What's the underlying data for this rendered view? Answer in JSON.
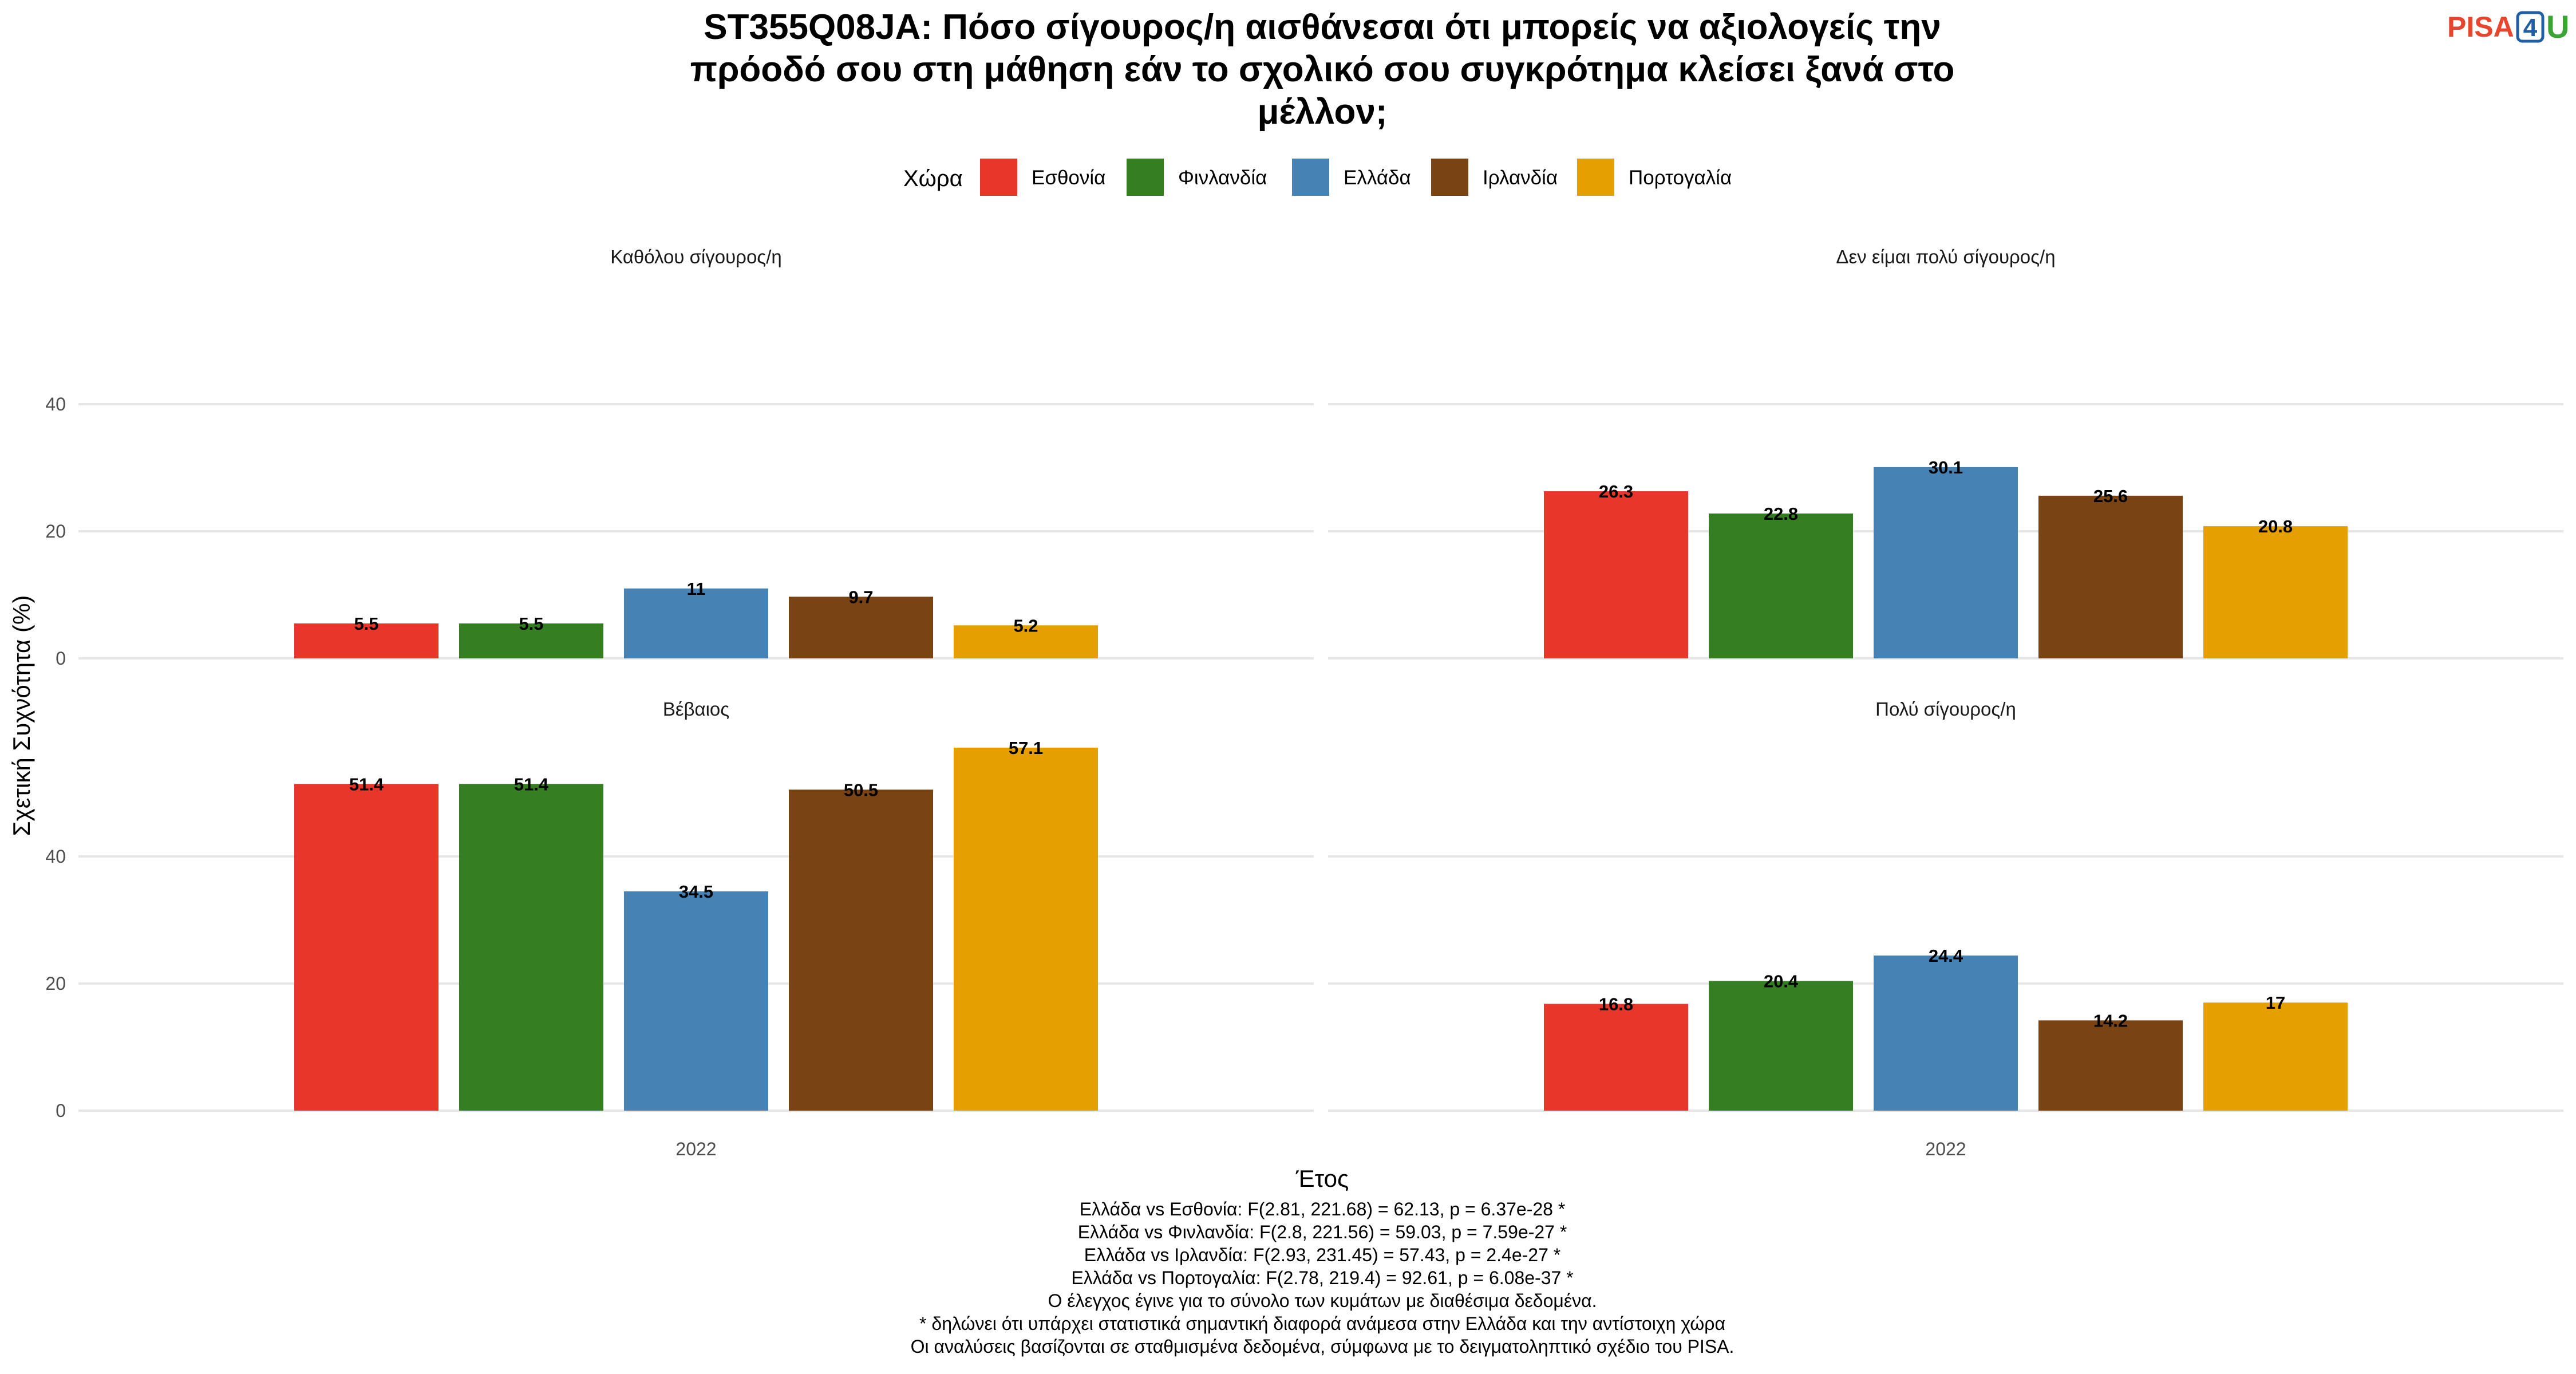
{
  "title_lines": [
    "ST355Q08JA: Πόσο σίγουρος/η αισθάνεσαι ότι μπορείς να αξιολογείς την",
    "πρόοδό σου στη μάθηση εάν το σχολικό σου συγκρότημα κλείσει ξανά στο",
    "μέλλον;"
  ],
  "logo": {
    "text_left": "PISA",
    "text_mid": "4",
    "text_right": "U"
  },
  "legend": {
    "title": "Χώρα"
  },
  "chart_data": {
    "type": "bar",
    "xlabel": "Έτος",
    "ylabel": "Σχετική Συχνότητα (%)",
    "categories": [
      "2022"
    ],
    "yticks": [
      0,
      20,
      40
    ],
    "grid": true,
    "legend_position": "top",
    "series": [
      {
        "name": "Εσθονία",
        "color": "#e8362a"
      },
      {
        "name": "Φινλανδία",
        "color": "#367e22"
      },
      {
        "name": "Ελλάδα",
        "color": "#4682b4"
      },
      {
        "name": "Ιρλανδία",
        "color": "#7a4314"
      },
      {
        "name": "Πορτογαλία",
        "color": "#e5a000"
      }
    ],
    "panels": [
      {
        "title": "Καθόλου σίγουρος/η",
        "ylim": [
          0,
          40
        ],
        "values": [
          5.5,
          5.5,
          11,
          9.7,
          5.2
        ],
        "labels": [
          "5.5",
          "5.5",
          "11",
          "9.7",
          "5.2"
        ]
      },
      {
        "title": "Δεν είμαι πολύ σίγουρος/η",
        "ylim": [
          0,
          40
        ],
        "values": [
          26.3,
          22.8,
          30.1,
          25.6,
          20.8
        ],
        "labels": [
          "26.3",
          "22.8",
          "30.1",
          "25.6",
          "20.8"
        ]
      },
      {
        "title": "Βέβαιος",
        "ylim": [
          0,
          57.1
        ],
        "values": [
          51.4,
          51.4,
          34.5,
          50.5,
          57.1
        ],
        "labels": [
          "51.4",
          "51.4",
          "34.5",
          "50.5",
          "57.1"
        ]
      },
      {
        "title": "Πολύ σίγουρος/η",
        "ylim": [
          0,
          57.1
        ],
        "values": [
          16.8,
          20.4,
          24.4,
          14.2,
          17
        ],
        "labels": [
          "16.8",
          "20.4",
          "24.4",
          "14.2",
          "17"
        ]
      }
    ]
  },
  "caption_lines": [
    "Ελλάδα vs Εσθονία: F(2.81, 221.68) = 62.13, p = 6.37e-28 *",
    "Ελλάδα vs Φινλανδία: F(2.8, 221.56) = 59.03, p = 7.59e-27 *",
    "Ελλάδα vs Ιρλανδία: F(2.93, 231.45) = 57.43, p = 2.4e-27 *",
    "Ελλάδα vs Πορτογαλία: F(2.78, 219.4) = 92.61, p = 6.08e-37 *",
    "Ο έλεγχος έγινε για το σύνολο των κυμάτων με διαθέσιμα δεδομένα.",
    "* δηλώνει ότι υπάρχει στατιστικά σημαντική διαφορά ανάμεσα στην Ελλάδα και την αντίστοιχη χώρα",
    "Οι αναλύσεις βασίζονται σε σταθμισμένα δεδομένα, σύμφωνα με το δειγματοληπτικό σχέδιο του PISA."
  ]
}
